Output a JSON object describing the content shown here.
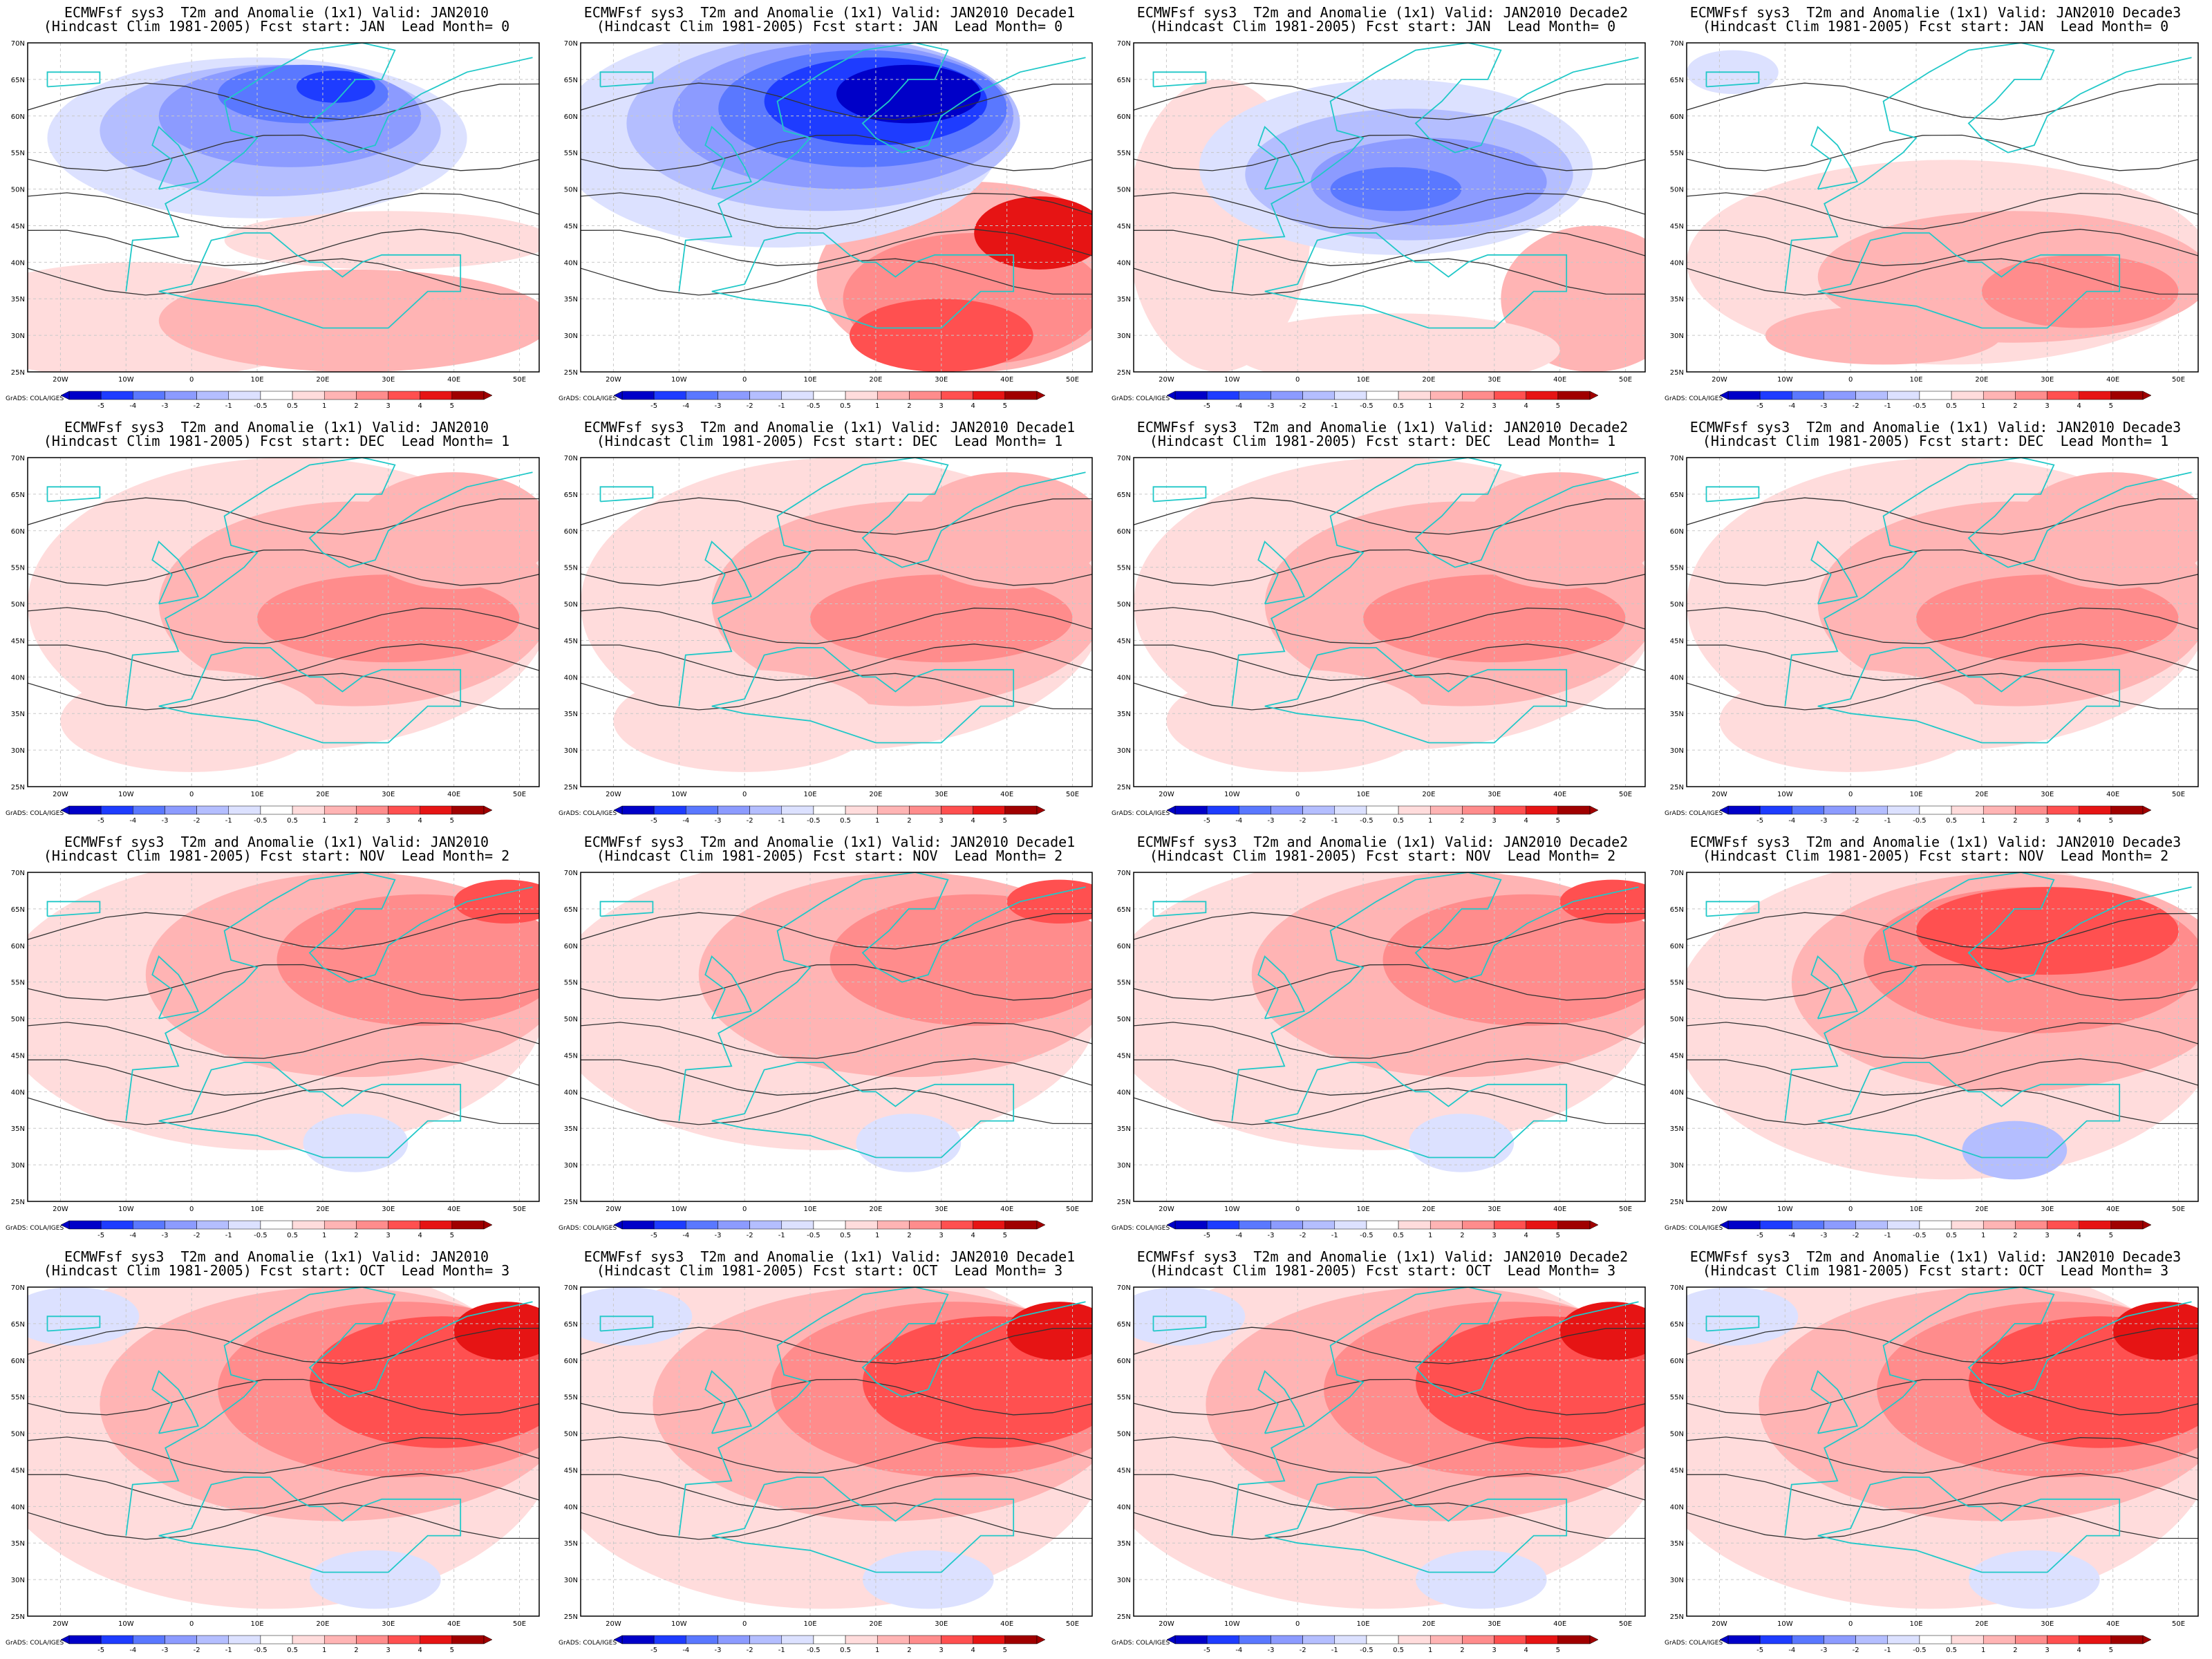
{
  "figure": {
    "line1_prefix": "ECMWFsf sys3  T2m and Anomalie (1x1) Valid: ",
    "line2_template": "(Hindcast Clim 1981-2005) Fcst start: {start}  Lead Month= {lead}",
    "credit": "GrADS: COLA/IGES",
    "columns": [
      "JAN2010",
      "JAN2010 Decade1",
      "JAN2010 Decade2",
      "JAN2010 Decade3"
    ],
    "rows": [
      {
        "start": "JAN",
        "lead": "0"
      },
      {
        "start": "DEC",
        "lead": "1"
      },
      {
        "start": "NOV",
        "lead": "2"
      },
      {
        "start": "OCT",
        "lead": "3"
      }
    ],
    "lat_labels": [
      "70N",
      "65N",
      "60N",
      "55N",
      "50N",
      "45N",
      "40N",
      "35N",
      "30N",
      "25N"
    ],
    "lon_labels": [
      "20W",
      "10W",
      "0",
      "10E",
      "20E",
      "30E",
      "40E",
      "50E"
    ],
    "colorbar_labels": [
      "-5",
      "-4",
      "-3",
      "-2",
      "-1",
      "-0.5",
      "0.5",
      "1",
      "2",
      "3",
      "4",
      "5"
    ],
    "colors": {
      "blue_scale": [
        "#0000c8",
        "#1e3cff",
        "#5a78ff",
        "#8c9bff",
        "#b4beff",
        "#dce1ff"
      ],
      "red_scale": [
        "#ffdcdc",
        "#ffb4b4",
        "#ff8c8c",
        "#ff5050",
        "#e61414",
        "#a00000"
      ],
      "coast": "#20c8c8"
    },
    "anomaly_regimes": [
      [
        "strong_cold_north",
        "extreme_cold_north",
        "cold_central",
        "mild_warm"
      ],
      [
        "warm_moderate",
        "warm_moderate",
        "warm_moderate",
        "warm_moderate"
      ],
      [
        "warm_east",
        "warm_east",
        "warm_east",
        "warm_strong_north"
      ],
      [
        "warm_strong_east",
        "warm_strong_east",
        "warm_strong_east",
        "warm_strong_east"
      ]
    ]
  }
}
